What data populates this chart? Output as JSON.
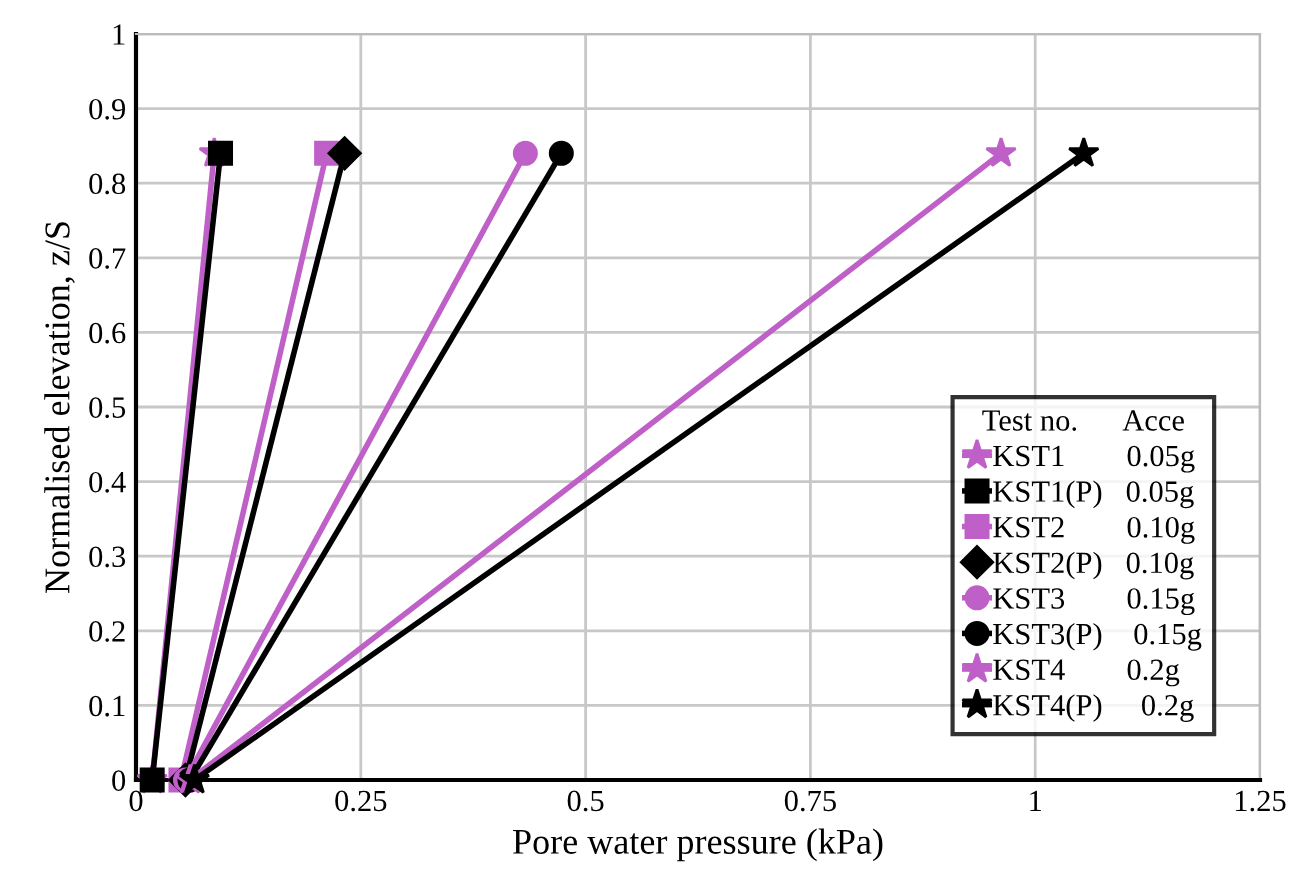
{
  "chart_data": {
    "type": "line",
    "xlabel": "Pore water pressure (kPa)",
    "ylabel": "Normalised elevation, z/S",
    "xlim": [
      0,
      1.25
    ],
    "xticks": [
      0,
      0.25,
      0.5,
      0.75,
      1,
      1.25
    ],
    "ylim": [
      0,
      1
    ],
    "yticks": [
      0,
      0.1,
      0.2,
      0.3,
      0.4,
      0.5,
      0.6,
      0.7,
      0.8,
      0.9,
      1
    ],
    "grid": true,
    "legend": "lower right",
    "legend_title": "Test no.      Acce",
    "series": [
      {
        "name": "KST1        0.05g",
        "color": "#bf5fc8",
        "marker": "star",
        "x": [
          0.018,
          0.087
        ],
        "values": [
          0,
          0.84
        ]
      },
      {
        "name": "KST1(P)   0.05g",
        "color": "#000000",
        "marker": "square",
        "x": [
          0.018,
          0.094
        ],
        "values": [
          0,
          0.84
        ]
      },
      {
        "name": "KST2        0.10g",
        "color": "#bf5fc8",
        "marker": "square",
        "x": [
          0.05,
          0.212
        ],
        "values": [
          0,
          0.84
        ]
      },
      {
        "name": "KST2(P)   0.10g",
        "color": "#000000",
        "marker": "diamond",
        "x": [
          0.055,
          0.232
        ],
        "values": [
          0,
          0.84
        ]
      },
      {
        "name": "KST3        0.15g",
        "color": "#bf5fc8",
        "marker": "circle",
        "x": [
          0.055,
          0.433
        ],
        "values": [
          0,
          0.84
        ]
      },
      {
        "name": "KST3(P)    0.15g",
        "color": "#000000",
        "marker": "circle",
        "x": [
          0.06,
          0.473
        ],
        "values": [
          0,
          0.84
        ]
      },
      {
        "name": "KST4        0.2g",
        "color": "#bf5fc8",
        "marker": "star",
        "x": [
          0.06,
          0.962
        ],
        "values": [
          0,
          0.84
        ]
      },
      {
        "name": "KST4(P)     0.2g",
        "color": "#000000",
        "marker": "star",
        "x": [
          0.065,
          1.054
        ],
        "values": [
          0,
          0.84
        ]
      }
    ]
  }
}
